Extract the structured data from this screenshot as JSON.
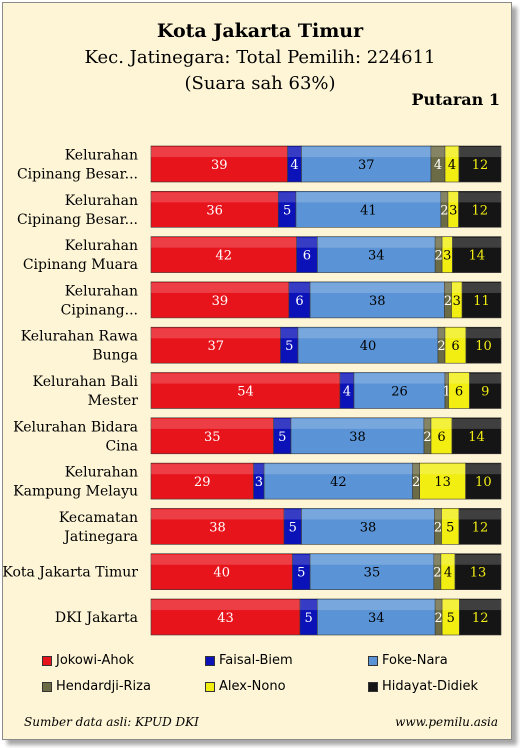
{
  "header": {
    "title": "Kota Jakarta Timur",
    "subtitle_line1": "Kec. Jatinegara: Total Pemilih: 224611",
    "subtitle_line2": "(Suara sah 63%)",
    "round": "Putaran 1"
  },
  "footer": {
    "source": "Sumber data asli: KPUD DKI",
    "website": "www.pemilu.asia"
  },
  "chart_data": {
    "type": "bar",
    "orientation": "horizontal",
    "stacked": "100%",
    "categories": [
      [
        "Kelurahan",
        "Cipinang Besar..."
      ],
      [
        "Kelurahan",
        "Cipinang Besar..."
      ],
      [
        "Kelurahan",
        "Cipinang Muara"
      ],
      [
        "Kelurahan",
        "Cipinang..."
      ],
      [
        "Kelurahan Rawa",
        "Bunga"
      ],
      [
        "Kelurahan Bali",
        "Mester"
      ],
      [
        "Kelurahan Bidara",
        "Cina"
      ],
      [
        "Kelurahan",
        "Kampung Melayu"
      ],
      [
        "Kecamatan",
        "Jatinegara"
      ],
      [
        "Kota Jakarta Timur"
      ],
      [
        "DKI Jakarta"
      ]
    ],
    "series": [
      {
        "name": "Jokowi-Ahok",
        "color": "#e8141b",
        "label_color": "#ffffff",
        "values": [
          39,
          36,
          42,
          39,
          37,
          54,
          35,
          29,
          38,
          40,
          43
        ]
      },
      {
        "name": "Faisal-Biem",
        "color": "#0a12b8",
        "label_color": "#ffffff",
        "values": [
          4,
          5,
          6,
          6,
          5,
          4,
          5,
          3,
          5,
          5,
          5
        ]
      },
      {
        "name": "Foke-Nara",
        "color": "#5a94d6",
        "label_color": "#000000",
        "values": [
          37,
          41,
          34,
          38,
          40,
          26,
          38,
          42,
          38,
          35,
          34
        ]
      },
      {
        "name": "Hendardji-Riza",
        "color": "#6b6b45",
        "label_color": "#ffffff",
        "values": [
          4,
          2,
          2,
          2,
          2,
          1,
          2,
          2,
          2,
          2,
          2
        ]
      },
      {
        "name": "Alex-Nono",
        "color": "#f2ee12",
        "label_color": "#000000",
        "values": [
          4,
          3,
          3,
          3,
          6,
          6,
          6,
          13,
          5,
          4,
          5
        ]
      },
      {
        "name": "Hidayat-Didiek",
        "color": "#151515",
        "label_color": "#f2ee12",
        "values": [
          12,
          12,
          14,
          11,
          10,
          9,
          14,
          10,
          12,
          13,
          12
        ]
      }
    ],
    "legend_position": "bottom"
  }
}
